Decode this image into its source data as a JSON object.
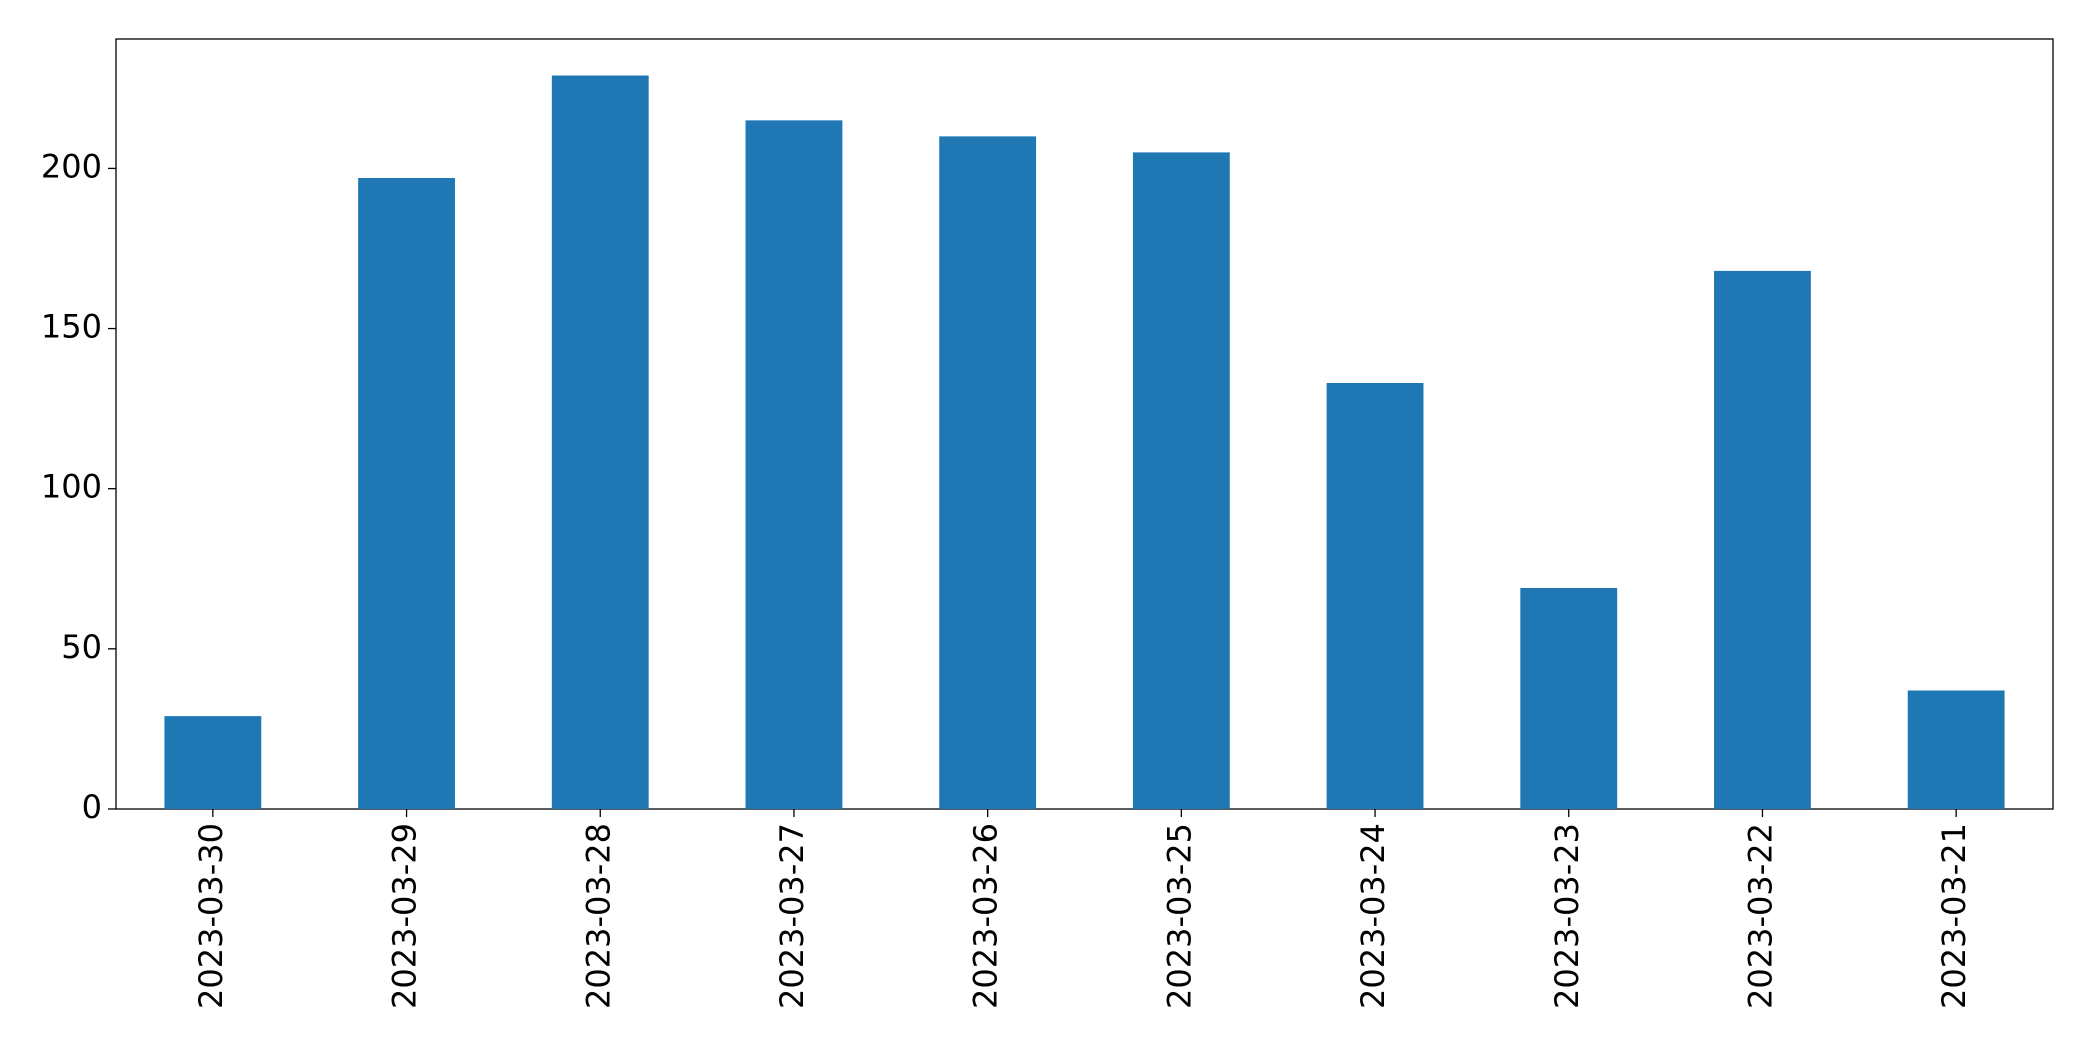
{
  "chart_data": {
    "type": "bar",
    "categories": [
      "2023-03-30",
      "2023-03-29",
      "2023-03-28",
      "2023-03-27",
      "2023-03-26",
      "2023-03-25",
      "2023-03-24",
      "2023-03-23",
      "2023-03-22",
      "2023-03-21"
    ],
    "values": [
      29,
      197,
      229,
      215,
      210,
      205,
      133,
      69,
      168,
      37
    ],
    "color": "#1f77b4",
    "ylim": [
      0,
      240.4
    ],
    "yticks": [
      0,
      50,
      100,
      150,
      200
    ],
    "grid": false
  }
}
